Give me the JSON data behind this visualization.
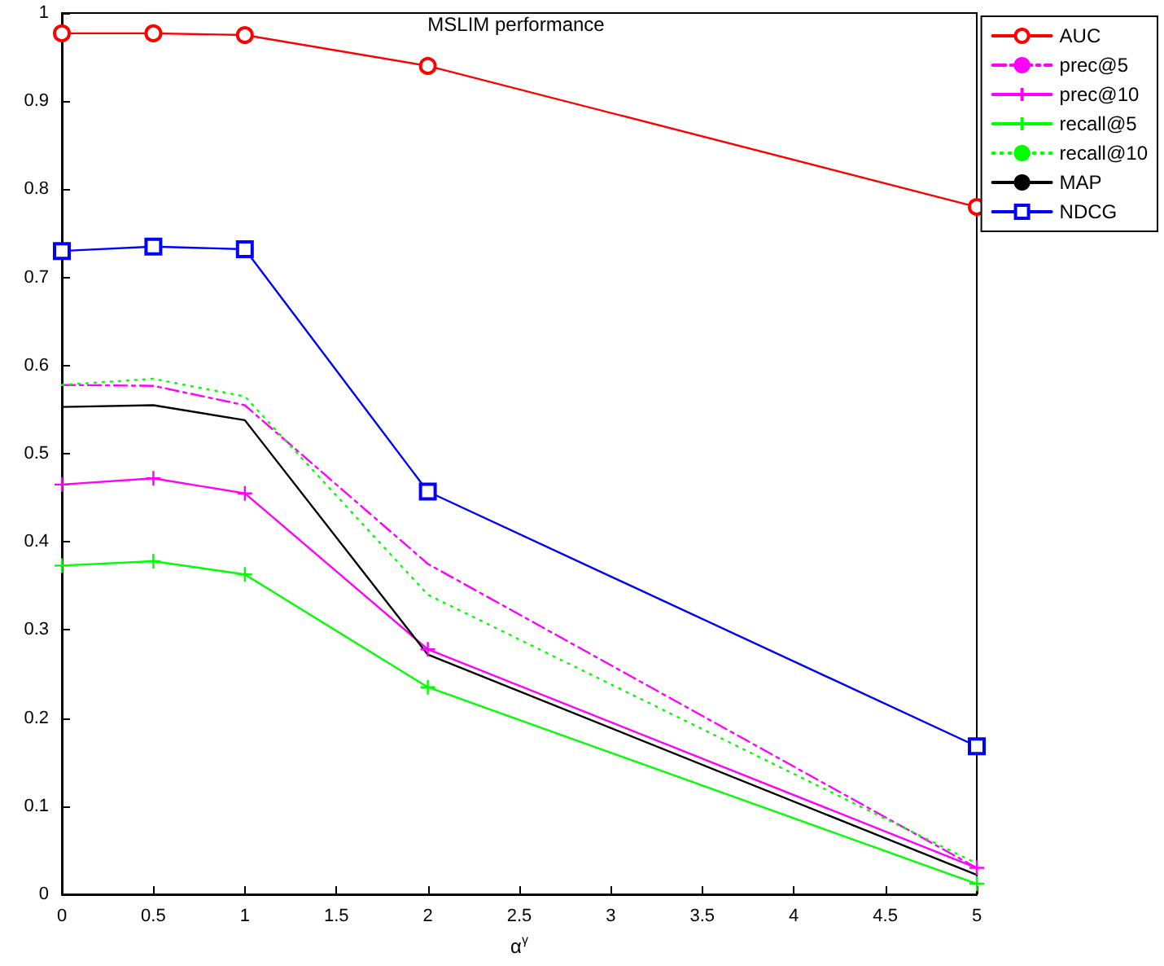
{
  "chart_data": {
    "type": "line",
    "title": "MSLIM performance",
    "xlabel": "α$^{γ}$",
    "x": [
      0,
      0.5,
      1,
      2,
      5
    ],
    "xlim": [
      0,
      5
    ],
    "xticks": [
      0,
      0.5,
      1,
      1.5,
      2,
      2.5,
      3,
      3.5,
      4,
      4.5,
      5
    ],
    "ylim": [
      0,
      1
    ],
    "yticks": [
      0,
      0.1,
      0.2,
      0.3,
      0.4,
      0.5,
      0.6,
      0.7,
      0.8,
      0.9,
      1
    ],
    "grid": false,
    "legend": "top right",
    "series": [
      {
        "name": "AUC",
        "color": "#ff0000",
        "marker": "circle",
        "line_style": "solid",
        "values": [
          0.977,
          0.977,
          0.975,
          0.94,
          0.78
        ]
      },
      {
        "name": "prec@5",
        "color": "#ff00ff",
        "marker": "none",
        "line_style": "dashed",
        "values": [
          0.578,
          0.577,
          0.555,
          0.375,
          0.03
        ]
      },
      {
        "name": "prec@10",
        "color": "#ff00ff",
        "marker": "cross",
        "line_style": "solid",
        "values": [
          0.465,
          0.472,
          0.455,
          0.278,
          0.03
        ]
      },
      {
        "name": "recall@5",
        "color": "#00ff00",
        "marker": "cross",
        "line_style": "solid",
        "values": [
          0.373,
          0.378,
          0.363,
          0.235,
          0.012
        ]
      },
      {
        "name": "recall@10",
        "color": "#00ff00",
        "marker": "none",
        "line_style": "dotted",
        "values": [
          0.578,
          0.585,
          0.565,
          0.34,
          0.035
        ]
      },
      {
        "name": "MAP",
        "color": "#000000",
        "marker": "none",
        "line_style": "solid",
        "values": [
          0.553,
          0.555,
          0.538,
          0.272,
          0.022
        ]
      },
      {
        "name": "NDCG",
        "color": "#0000ff",
        "marker": "square",
        "line_style": "solid",
        "values": [
          0.73,
          0.735,
          0.732,
          0.457,
          0.168
        ]
      }
    ]
  }
}
